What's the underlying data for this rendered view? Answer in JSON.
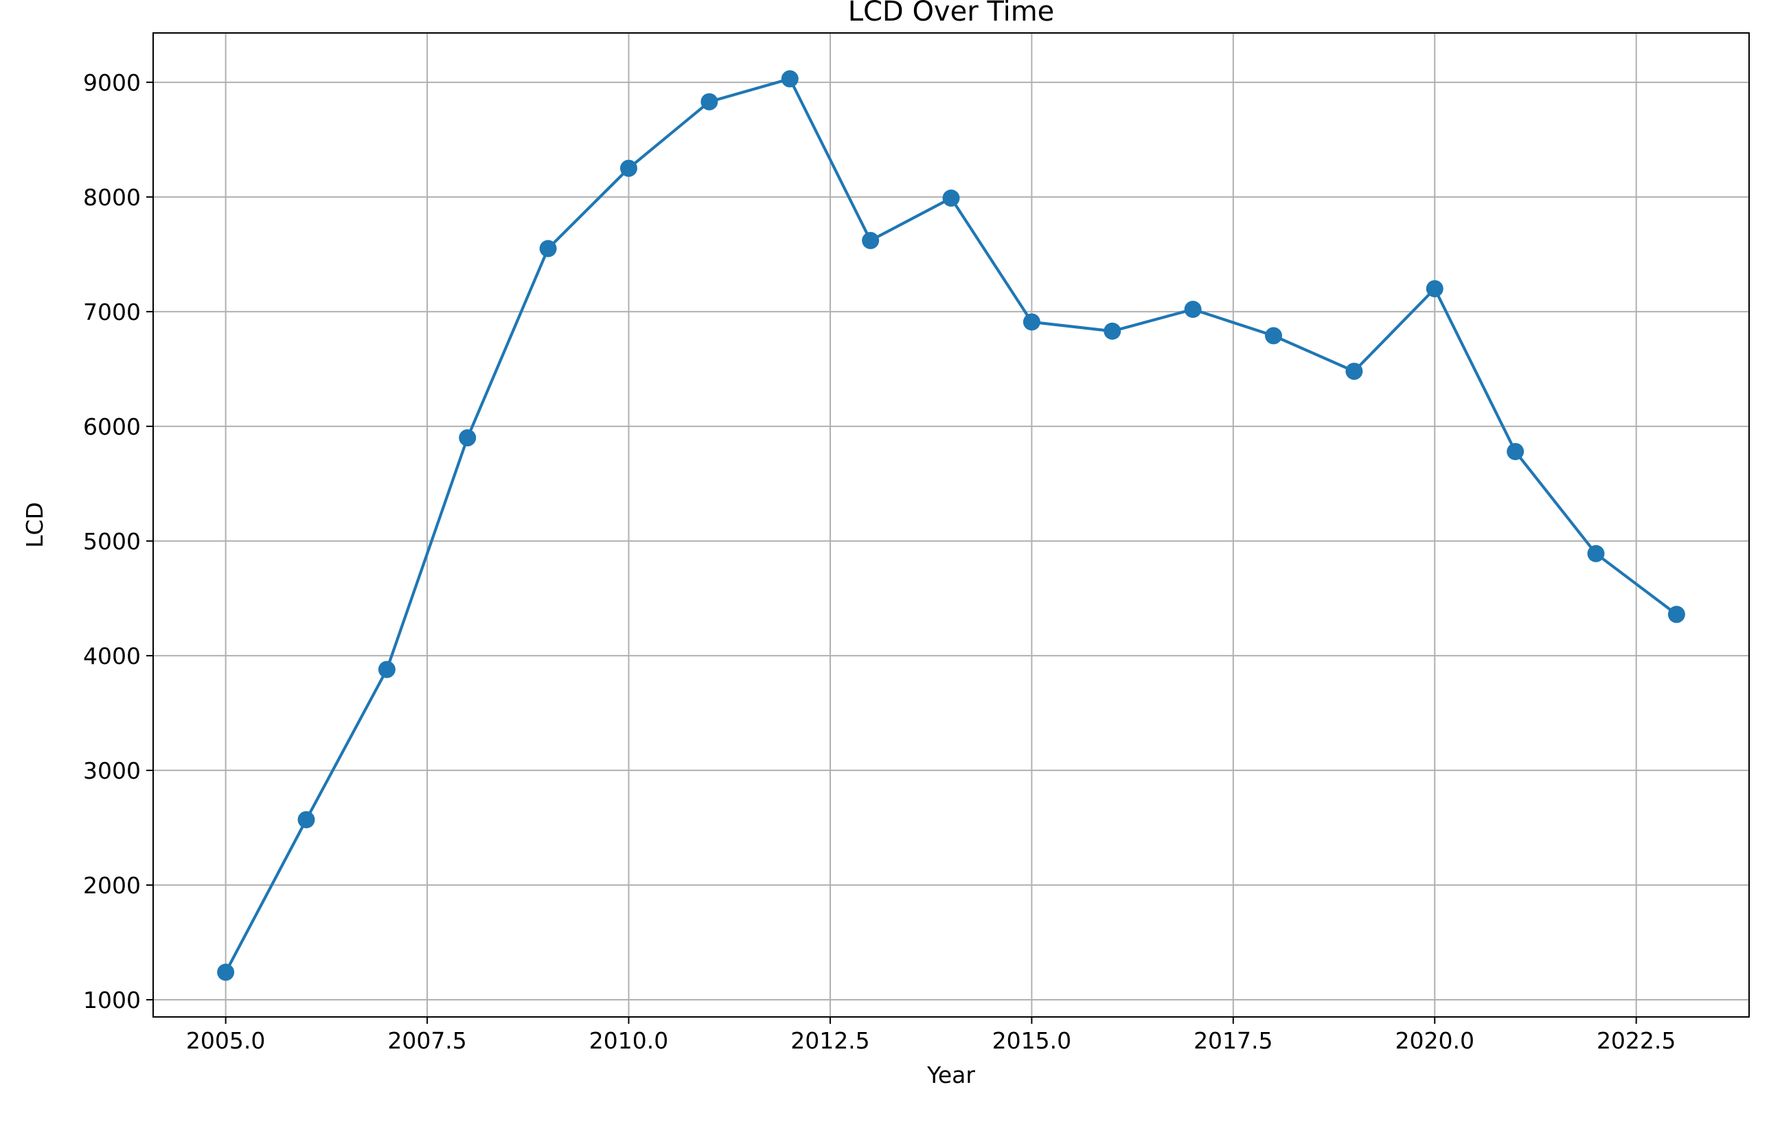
{
  "chart_data": {
    "type": "line",
    "title": "LCD Over Time",
    "xlabel": "Year",
    "ylabel": "LCD",
    "xlim": [
      2004.1,
      2023.9
    ],
    "ylim": [
      850,
      9430
    ],
    "xticks": [
      2005.0,
      2007.5,
      2010.0,
      2012.5,
      2015.0,
      2017.5,
      2020.0,
      2022.5
    ],
    "xtick_labels": [
      "2005.0",
      "2007.5",
      "2010.0",
      "2012.5",
      "2015.0",
      "2017.5",
      "2020.0",
      "2022.5"
    ],
    "yticks": [
      1000,
      2000,
      3000,
      4000,
      5000,
      6000,
      7000,
      8000,
      9000
    ],
    "ytick_labels": [
      "1000",
      "2000",
      "3000",
      "4000",
      "5000",
      "6000",
      "7000",
      "8000",
      "9000"
    ],
    "grid": true,
    "marker": "circle",
    "series": [
      {
        "color": "#1f77b4",
        "x": [
          2005,
          2006,
          2007,
          2008,
          2009,
          2010,
          2011,
          2012,
          2013,
          2014,
          2015,
          2016,
          2017,
          2018,
          2019,
          2020,
          2021,
          2022,
          2023
        ],
        "y": [
          1240,
          2570,
          3880,
          5900,
          7550,
          8250,
          8830,
          9030,
          7620,
          7990,
          6910,
          6830,
          7020,
          6790,
          6480,
          7200,
          5780,
          4890,
          4360
        ]
      }
    ]
  }
}
